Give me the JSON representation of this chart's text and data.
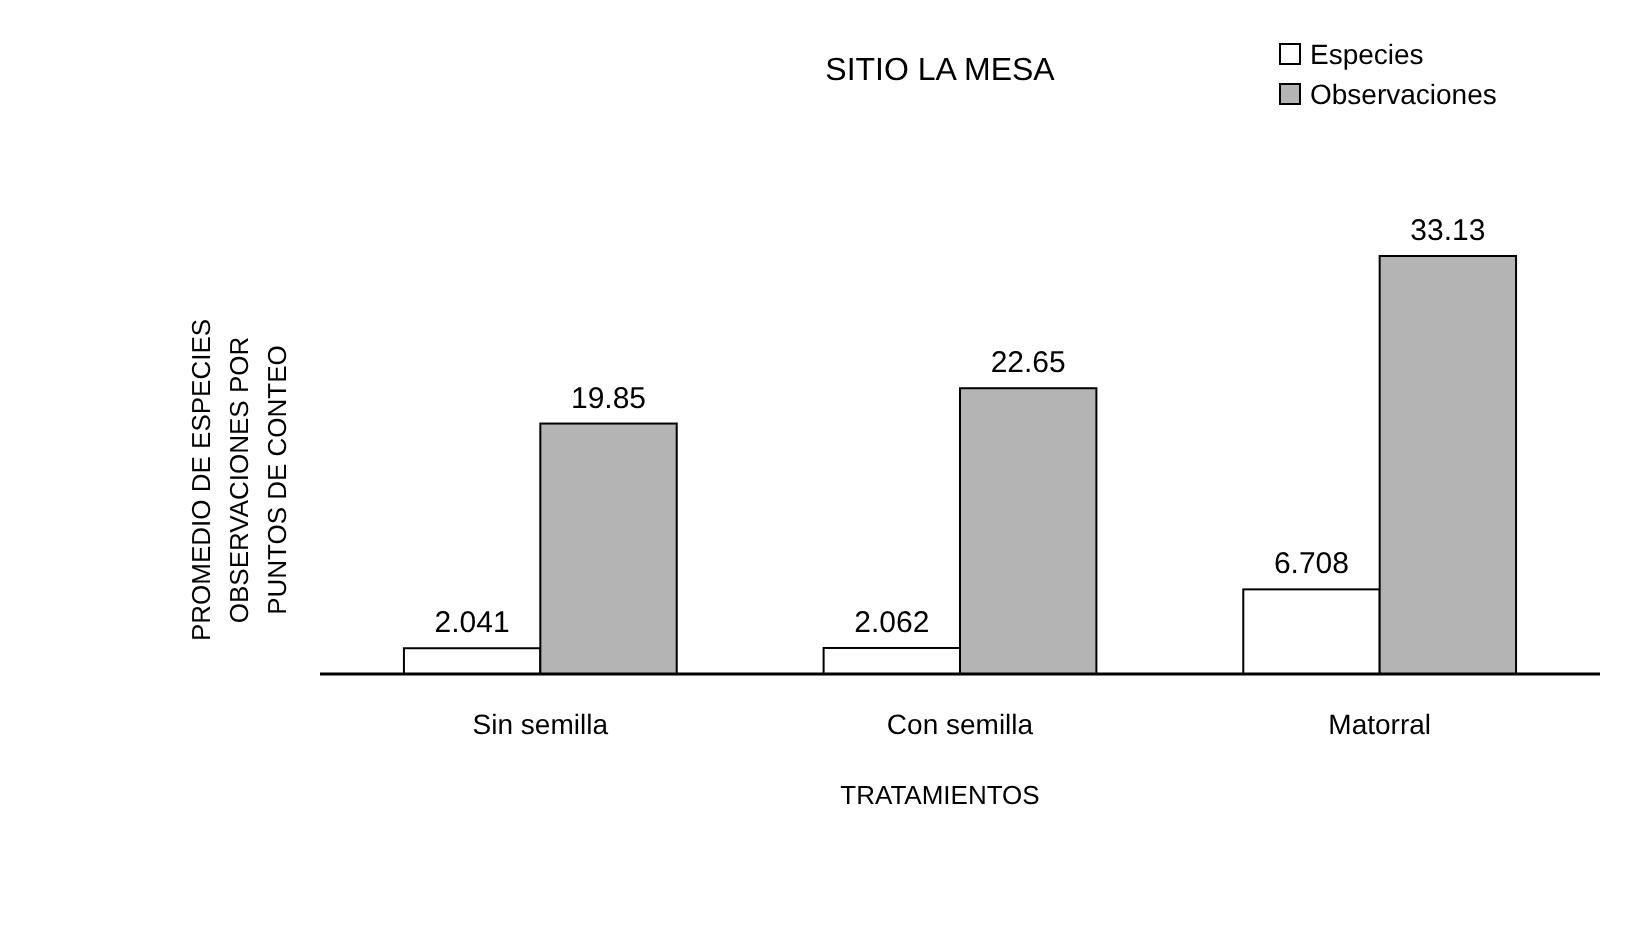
{
  "chart_data": {
    "type": "bar",
    "title": "SITIO LA MESA",
    "xlabel": "TRATAMIENTOS",
    "ylabel": "PROMEDIO DE ESPECIES\nOBSERVACIONES POR\nPUNTOS DE CONTEO",
    "categories": [
      "Sin semilla",
      "Con semilla",
      "Matorral"
    ],
    "series": [
      {
        "name": "Especies",
        "color": "#ffffff",
        "values": [
          2.041,
          2.062,
          6.708
        ]
      },
      {
        "name": "Observaciones",
        "color": "#b4b4b4",
        "values": [
          19.85,
          22.65,
          33.13
        ]
      }
    ],
    "data_labels": true,
    "legend": "top right"
  }
}
